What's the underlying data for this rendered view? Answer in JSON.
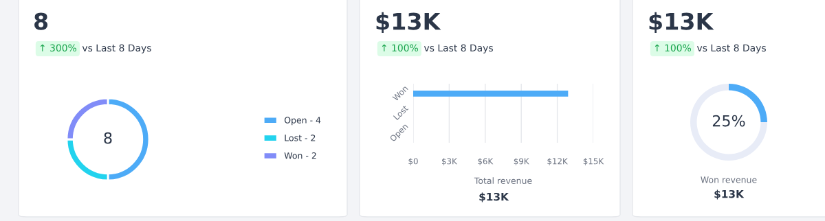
{
  "chart_data": [
    {
      "type": "donut",
      "title": "8",
      "subtitle": "↑ 300%",
      "annotations": [
        "vs Last 8 Days",
        "8"
      ],
      "categories": [
        "Open - 4",
        "Lost - 2",
        "Won - 2"
      ],
      "values": [
        50,
        25,
        25
      ],
      "colors": [
        "#4dabf7",
        "#22d3ee",
        "#818cf8"
      ],
      "legend": "right"
    },
    {
      "type": "bar",
      "orientation": "horizontal",
      "title": "$13K",
      "subtitle": "↑ 100%",
      "annotations": [
        "vs Last 8 Days",
        "$13K"
      ],
      "xlabel": "Total revenue",
      "categories": [
        "Won",
        "Lost",
        "Open"
      ],
      "values": [
        12900,
        0,
        0
      ],
      "color": "#4dabf7",
      "xlim": [
        0,
        15000
      ],
      "xticks": [
        {
          "value": 0,
          "label": "$0"
        },
        {
          "value": 3000,
          "label": "$3K"
        },
        {
          "value": 6000,
          "label": "$6K"
        },
        {
          "value": 9000,
          "label": "$9K"
        },
        {
          "value": 12000,
          "label": "$12K"
        },
        {
          "value": 15000,
          "label": "$15K"
        }
      ],
      "grid": "x"
    },
    {
      "type": "donut",
      "title": "$13K",
      "subtitle": "↑ 100%",
      "annotations": [
        "vs Last 8 Days",
        "25%",
        "Won revenue",
        "$13K"
      ],
      "categories": [
        null,
        null
      ],
      "values": [
        25,
        75
      ],
      "colors": [
        "#4dabf7",
        "#e8ecf7"
      ]
    }
  ]
}
